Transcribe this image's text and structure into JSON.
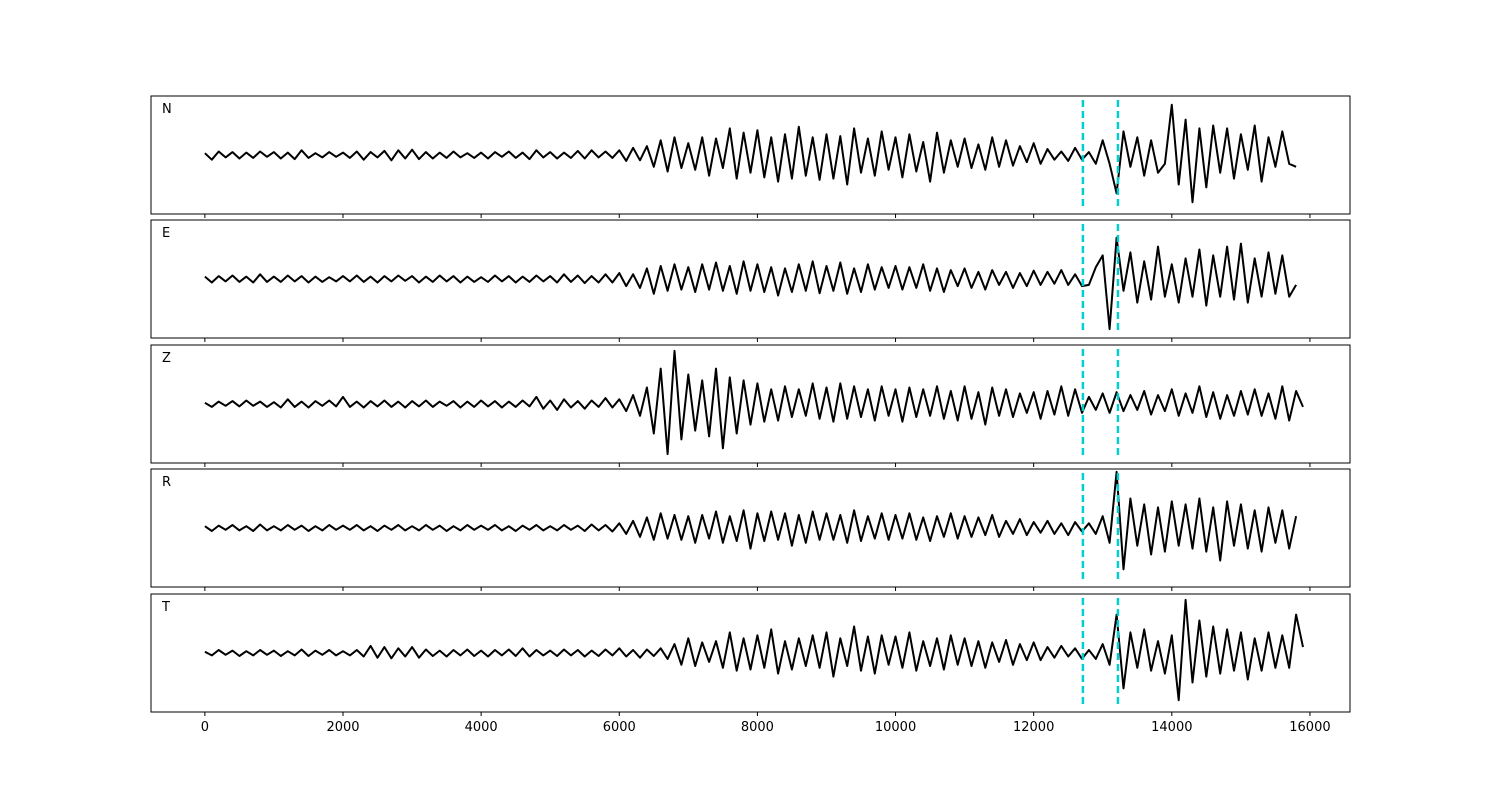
{
  "chart_data": {
    "type": "line",
    "xlim": [
      -780,
      16580
    ],
    "ylim": [
      -100,
      100
    ],
    "x_ticks": [
      0,
      2000,
      4000,
      6000,
      8000,
      10000,
      12000,
      14000,
      16000
    ],
    "x_tick_labels": [
      "0",
      "2000",
      "4000",
      "6000",
      "8000",
      "10000",
      "12000",
      "14000",
      "16000"
    ],
    "x_step": 100,
    "grid": false,
    "line_color": "#000000",
    "markers": {
      "positions": [
        12713,
        13220
      ],
      "color": "#00CED1",
      "style": "dashed"
    },
    "panels": [
      {
        "label": "N",
        "values": [
          3,
          -8,
          6,
          -4,
          5,
          -6,
          4,
          -5,
          6,
          -3,
          5,
          -6,
          4,
          -7,
          8,
          -5,
          3,
          -4,
          5,
          -3,
          4,
          -5,
          6,
          -8,
          5,
          -4,
          7,
          -9,
          8,
          -6,
          9,
          -7,
          5,
          -6,
          4,
          -5,
          6,
          -4,
          3,
          -5,
          4,
          -6,
          5,
          -3,
          6,
          -5,
          4,
          -7,
          8,
          -4,
          5,
          -6,
          4,
          -5,
          7,
          -6,
          8,
          -4,
          6,
          -5,
          8,
          -10,
          12,
          -9,
          15,
          -20,
          25,
          -28,
          30,
          -22,
          20,
          -25,
          30,
          -35,
          28,
          -22,
          45,
          -40,
          38,
          -30,
          42,
          -38,
          30,
          -45,
          35,
          -40,
          48,
          -35,
          30,
          -42,
          35,
          -40,
          32,
          -50,
          45,
          -30,
          28,
          -35,
          40,
          -25,
          30,
          -38,
          35,
          -28,
          22,
          -45,
          38,
          -30,
          25,
          -20,
          28,
          -22,
          18,
          -25,
          30,
          -20,
          25,
          -18,
          15,
          -12,
          20,
          -15,
          10,
          -8,
          6,
          -10,
          12,
          -8,
          5,
          -15,
          25,
          -15,
          -65,
          40,
          -20,
          30,
          -35,
          25,
          -30,
          -15,
          85,
          -50,
          60,
          -80,
          45,
          -55,
          50,
          -30,
          45,
          -40,
          35,
          -25,
          50,
          -45,
          30,
          -20,
          40,
          -15,
          -20
        ]
      },
      {
        "label": "E",
        "values": [
          4,
          -6,
          5,
          -4,
          6,
          -5,
          4,
          -6,
          8,
          -5,
          4,
          -5,
          6,
          -4,
          5,
          -6,
          4,
          -5,
          3,
          -4,
          5,
          -4,
          6,
          -5,
          4,
          -6,
          5,
          -4,
          6,
          -3,
          5,
          -6,
          4,
          -5,
          6,
          -4,
          5,
          -6,
          4,
          -5,
          3,
          -5,
          6,
          -4,
          5,
          -6,
          4,
          -5,
          6,
          -4,
          5,
          -6,
          8,
          -5,
          6,
          -7,
          5,
          -6,
          8,
          -6,
          10,
          -12,
          8,
          -15,
          18,
          -25,
          22,
          -20,
          25,
          -18,
          20,
          -22,
          25,
          -18,
          28,
          -20,
          22,
          -25,
          30,
          -20,
          25,
          -22,
          20,
          -28,
          18,
          -22,
          25,
          -20,
          30,
          -24,
          22,
          -20,
          28,
          -25,
          18,
          -22,
          25,
          -18,
          20,
          -15,
          22,
          -18,
          20,
          -15,
          25,
          -20,
          18,
          -22,
          15,
          -12,
          18,
          -15,
          12,
          -18,
          15,
          -10,
          12,
          -15,
          10,
          -12,
          14,
          -10,
          12,
          -8,
          15,
          -10,
          8,
          -12,
          -10,
          20,
          40,
          -85,
          70,
          -20,
          45,
          -40,
          30,
          -35,
          55,
          -30,
          25,
          -40,
          35,
          -30,
          50,
          -45,
          40,
          -30,
          55,
          -35,
          60,
          -40,
          35,
          -30,
          45,
          -25,
          40,
          -30,
          -10
        ]
      },
      {
        "label": "Z",
        "values": [
          2,
          -5,
          4,
          -3,
          5,
          -4,
          6,
          -3,
          4,
          -5,
          3,
          -6,
          8,
          -5,
          4,
          -6,
          5,
          -3,
          6,
          -4,
          12,
          -5,
          4,
          -6,
          5,
          -4,
          6,
          -5,
          4,
          -6,
          5,
          -4,
          6,
          -5,
          4,
          -3,
          5,
          -6,
          4,
          -5,
          6,
          -4,
          5,
          -6,
          4,
          -5,
          6,
          -4,
          12,
          -8,
          6,
          -10,
          8,
          -6,
          5,
          -8,
          6,
          -5,
          10,
          -6,
          8,
          -12,
          15,
          -20,
          28,
          -50,
          60,
          -85,
          90,
          -60,
          50,
          -45,
          40,
          -55,
          60,
          -75,
          45,
          -50,
          40,
          -35,
          35,
          -30,
          25,
          -28,
          30,
          -22,
          25,
          -20,
          35,
          -25,
          28,
          -30,
          35,
          -25,
          30,
          -22,
          25,
          -28,
          30,
          -20,
          25,
          -30,
          28,
          -22,
          25,
          -20,
          30,
          -25,
          22,
          -28,
          30,
          -25,
          20,
          -35,
          28,
          -20,
          25,
          -22,
          18,
          -15,
          20,
          -25,
          22,
          -18,
          30,
          -20,
          25,
          -15,
          12,
          -10,
          18,
          -15,
          20,
          -12,
          15,
          -10,
          22,
          -18,
          15,
          -12,
          25,
          -20,
          18,
          -15,
          30,
          -22,
          20,
          -25,
          15,
          -20,
          22,
          -18,
          25,
          -20,
          18,
          -25,
          30,
          -28,
          22,
          -5
        ]
      },
      {
        "label": "R",
        "values": [
          3,
          -5,
          4,
          -3,
          5,
          -4,
          3,
          -5,
          6,
          -4,
          3,
          -4,
          5,
          -3,
          4,
          -5,
          3,
          -4,
          5,
          -3,
          4,
          -3,
          5,
          -4,
          3,
          -5,
          4,
          -3,
          5,
          -4,
          3,
          -4,
          5,
          -3,
          4,
          -5,
          3,
          -4,
          5,
          -3,
          4,
          -3,
          5,
          -4,
          3,
          -5,
          4,
          -3,
          5,
          -4,
          3,
          -4,
          5,
          -3,
          4,
          -5,
          6,
          -4,
          5,
          -6,
          8,
          -10,
          12,
          -15,
          18,
          -20,
          25,
          -18,
          22,
          -20,
          20,
          -25,
          22,
          -18,
          28,
          -25,
          20,
          -22,
          30,
          -35,
          25,
          -22,
          28,
          -20,
          25,
          -30,
          22,
          -25,
          28,
          -20,
          25,
          -20,
          22,
          -25,
          30,
          -22,
          20,
          -18,
          25,
          -20,
          22,
          -18,
          25,
          -20,
          18,
          -22,
          20,
          -15,
          25,
          -18,
          20,
          -15,
          18,
          -12,
          22,
          -15,
          12,
          -10,
          15,
          -12,
          10,
          -8,
          12,
          -10,
          8,
          -12,
          10,
          -6,
          8,
          -10,
          20,
          -25,
          95,
          -70,
          50,
          -30,
          40,
          -45,
          35,
          -40,
          45,
          -30,
          40,
          -35,
          50,
          -40,
          35,
          -55,
          45,
          -30,
          40,
          -35,
          30,
          -40,
          35,
          -25,
          30,
          -35,
          20
        ]
      },
      {
        "label": "T",
        "values": [
          2,
          -4,
          5,
          -3,
          4,
          -5,
          3,
          -4,
          5,
          -3,
          4,
          -5,
          3,
          -4,
          6,
          -5,
          4,
          -3,
          5,
          -4,
          3,
          -4,
          5,
          -6,
          12,
          -8,
          10,
          -9,
          8,
          -6,
          10,
          -8,
          6,
          -5,
          4,
          -6,
          5,
          -4,
          6,
          -5,
          4,
          -6,
          5,
          -4,
          6,
          -5,
          8,
          -6,
          5,
          -4,
          4,
          -5,
          6,
          -4,
          5,
          -6,
          4,
          -5,
          6,
          -4,
          8,
          -6,
          5,
          -8,
          6,
          -5,
          8,
          -10,
          15,
          -20,
          25,
          -22,
          18,
          -15,
          20,
          -25,
          35,
          -30,
          25,
          -28,
          30,
          -25,
          40,
          -35,
          20,
          -28,
          25,
          -22,
          30,
          -25,
          35,
          -40,
          25,
          -22,
          45,
          -30,
          28,
          -35,
          30,
          -20,
          28,
          -25,
          35,
          -30,
          20,
          -22,
          25,
          -28,
          30,
          -20,
          25,
          -22,
          20,
          -25,
          18,
          -15,
          22,
          -20,
          15,
          -12,
          18,
          -12,
          10,
          -8,
          12,
          -6,
          8,
          -10,
          5,
          -10,
          15,
          -20,
          65,
          -60,
          35,
          -25,
          40,
          -30,
          20,
          -35,
          30,
          -80,
          90,
          -50,
          55,
          -40,
          45,
          -35,
          40,
          -30,
          35,
          -45,
          25,
          -30,
          35,
          -25,
          30,
          -25,
          65,
          10
        ]
      }
    ]
  }
}
